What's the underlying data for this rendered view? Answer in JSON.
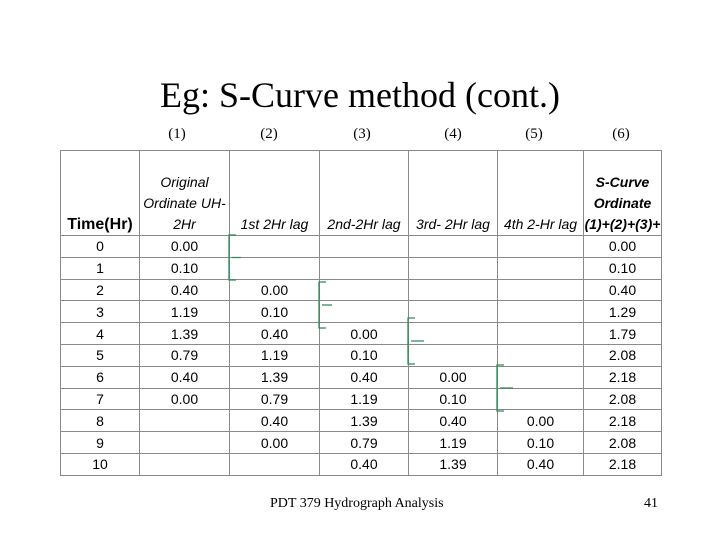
{
  "slide": {
    "title": "Eg: S-Curve method (cont.)",
    "footer": "PDT 379 Hydrograph Analysis",
    "page_number": "41"
  },
  "column_numbers": [
    "(1)",
    "(2)",
    "(3)",
    "(4)",
    "(5)",
    "(6)"
  ],
  "table": {
    "headers": [
      "Time(Hr)",
      "Original Ordinate UH-2Hr",
      "1st 2Hr lag",
      "2nd-2Hr lag",
      "3rd- 2Hr lag",
      "4th 2-Hr lag",
      "S-Curve Ordinate (1)+(2)+(3)+"
    ],
    "rows": [
      [
        "0",
        "0.00",
        "",
        "",
        "",
        "",
        "0.00"
      ],
      [
        "1",
        "0.10",
        "",
        "",
        "",
        "",
        "0.10"
      ],
      [
        "2",
        "0.40",
        "0.00",
        "",
        "",
        "",
        "0.40"
      ],
      [
        "3",
        "1.19",
        "0.10",
        "",
        "",
        "",
        "1.29"
      ],
      [
        "4",
        "1.39",
        "0.40",
        "0.00",
        "",
        "",
        "1.79"
      ],
      [
        "5",
        "0.79",
        "1.19",
        "0.10",
        "",
        "",
        "2.08"
      ],
      [
        "6",
        "0.40",
        "1.39",
        "0.40",
        "0.00",
        "",
        "2.18"
      ],
      [
        "7",
        "0.00",
        "0.79",
        "1.19",
        "0.10",
        "",
        "2.08"
      ],
      [
        "8",
        "",
        "0.40",
        "1.39",
        "0.40",
        "0.00",
        "2.18"
      ],
      [
        "9",
        "",
        "0.00",
        "0.79",
        "1.19",
        "0.10",
        "2.08"
      ],
      [
        "10",
        "",
        "",
        "0.40",
        "1.39",
        "0.40",
        "2.18"
      ]
    ]
  },
  "colors": {
    "bracket": "#2e8b57",
    "grid": "#8a8a8a"
  }
}
